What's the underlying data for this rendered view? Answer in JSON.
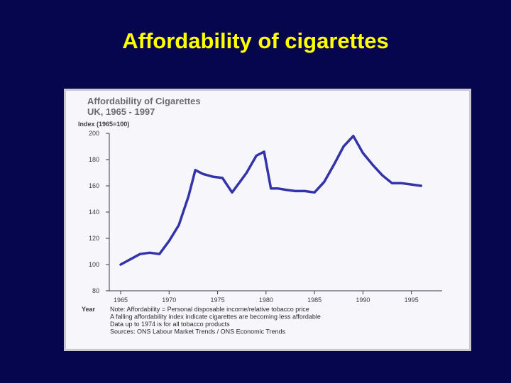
{
  "slide": {
    "title": "Affordability of cigarettes"
  },
  "chart_data": {
    "type": "line",
    "title": "Affordability of Cigarettes",
    "subtitle": "UK, 1965 - 1997",
    "ylabel": "Index (1965=100)",
    "xlabel": "Year",
    "xlim": [
      1965,
      1997
    ],
    "ylim": [
      80,
      200
    ],
    "x_ticks": [
      1965,
      1970,
      1975,
      1980,
      1985,
      1990,
      1995
    ],
    "y_ticks": [
      80,
      100,
      120,
      140,
      160,
      180,
      200
    ],
    "grid": false,
    "legend": "none",
    "series": [
      {
        "color": "#3333aa",
        "x": [
          1965,
          1966,
          1967,
          1968,
          1969,
          1970,
          1971,
          1972,
          1972.7,
          1973.5,
          1974.5,
          1975.5,
          1976.5,
          1977.3,
          1978,
          1979,
          1979.8,
          1980.5,
          1981.2,
          1982,
          1983,
          1984,
          1985,
          1986,
          1987,
          1988,
          1989,
          1990,
          1991,
          1992,
          1993,
          1994,
          1995,
          1996
        ],
        "y": [
          100,
          104,
          108,
          109,
          108,
          118,
          130,
          152,
          172,
          169,
          167,
          166,
          155,
          163,
          170,
          183,
          186,
          158,
          158,
          157,
          156,
          156,
          155,
          163,
          176,
          190,
          198,
          185,
          176,
          168,
          162,
          162,
          161,
          160
        ]
      }
    ],
    "notes": [
      "Note: Affordability = Personal disposable income/relative tobacco price",
      "A falling affordability index indicate cigarettes are becoming less affordable",
      "Data up to 1974 is for all tobacco products",
      "Sources: ONS Labour Market Trends / ONS Economic Trends"
    ]
  }
}
